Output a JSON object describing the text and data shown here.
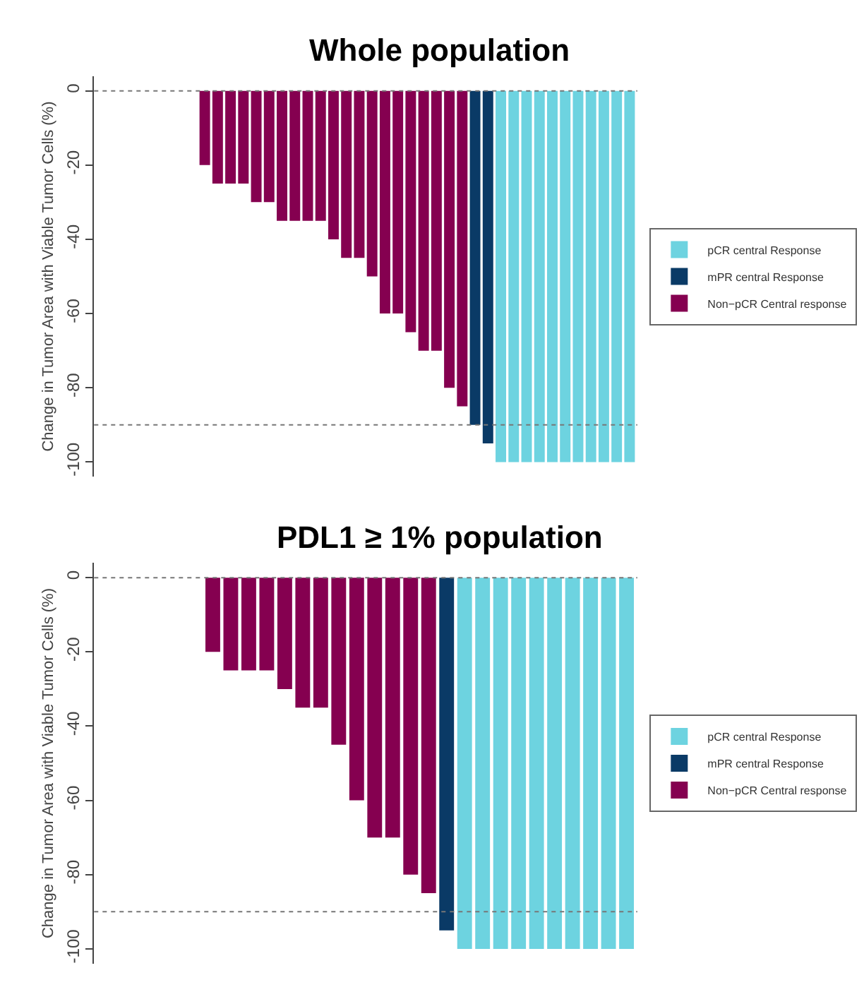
{
  "chart_data": [
    {
      "type": "bar",
      "title": "Whole population",
      "ylabel": "Change in Tumor Area with Viable Tumor Cells (%)",
      "categories": [
        null,
        null,
        null,
        null,
        null,
        null,
        null,
        null,
        null,
        null,
        null,
        null,
        null,
        null,
        null,
        null,
        null,
        null,
        null,
        null,
        null,
        null,
        null,
        null,
        null,
        null,
        null,
        null,
        null,
        null,
        null,
        null,
        null,
        null,
        null,
        null,
        null,
        null,
        null,
        null,
        null,
        null
      ],
      "series": [
        {
          "name": "pCR central Response",
          "color": "#6dd3e0",
          "values": [
            null,
            null,
            null,
            null,
            null,
            null,
            null,
            null,
            null,
            null,
            null,
            null,
            null,
            null,
            null,
            null,
            null,
            null,
            null,
            null,
            null,
            null,
            null,
            null,
            null,
            null,
            null,
            null,
            null,
            null,
            null,
            -100,
            -100,
            -100,
            -100,
            -100,
            -100,
            -100,
            -100,
            -100,
            -100,
            -100
          ]
        },
        {
          "name": "mPR central Response",
          "color": "#0a3a66",
          "values": [
            null,
            null,
            null,
            null,
            null,
            null,
            null,
            null,
            null,
            null,
            null,
            null,
            null,
            null,
            null,
            null,
            null,
            null,
            null,
            null,
            null,
            null,
            null,
            null,
            null,
            null,
            null,
            null,
            null,
            -90,
            -95,
            null,
            null,
            null,
            null,
            null,
            null,
            null,
            null,
            null,
            null,
            null
          ]
        },
        {
          "name": "Non−pCR Central response",
          "color": "#850050",
          "values": [
            0,
            0,
            0,
            0,
            0,
            0,
            0,
            0,
            -20,
            -25,
            -25,
            -25,
            -30,
            -30,
            -35,
            -35,
            -35,
            -35,
            -40,
            -45,
            -45,
            -50,
            -60,
            -60,
            -65,
            -70,
            -70,
            -80,
            -85,
            null,
            null,
            null,
            null,
            null,
            null,
            null,
            null,
            null,
            null,
            null,
            null,
            null
          ]
        }
      ],
      "ylim": [
        -104,
        4
      ],
      "yticks": [
        0,
        -20,
        -40,
        -60,
        -80,
        -100
      ],
      "ref_lines": [
        {
          "axis": "y",
          "value": 0,
          "color": "#777777",
          "line_style": "dotted"
        },
        {
          "axis": "y",
          "value": -90,
          "color": "#777777",
          "line_style": "dotted"
        }
      ],
      "legend": "right",
      "tick_labels": "y"
    },
    {
      "type": "bar",
      "title": "PDL1 ≥ 1% population",
      "ylabel": "Change in Tumor Area with Viable Tumor Cells (%)",
      "categories": [
        null,
        null,
        null,
        null,
        null,
        null,
        null,
        null,
        null,
        null,
        null,
        null,
        null,
        null,
        null,
        null,
        null,
        null,
        null,
        null,
        null,
        null,
        null,
        null,
        null,
        null,
        null,
        null,
        null,
        null
      ],
      "series": [
        {
          "name": "pCR central Response",
          "color": "#6dd3e0",
          "values": [
            null,
            null,
            null,
            null,
            null,
            null,
            null,
            null,
            null,
            null,
            null,
            null,
            null,
            null,
            null,
            null,
            null,
            null,
            null,
            null,
            -100,
            -100,
            -100,
            -100,
            -100,
            -100,
            -100,
            -100,
            -100,
            -100
          ]
        },
        {
          "name": "mPR central Response",
          "color": "#0a3a66",
          "values": [
            null,
            null,
            null,
            null,
            null,
            null,
            null,
            null,
            null,
            null,
            null,
            null,
            null,
            null,
            null,
            null,
            null,
            null,
            null,
            -95,
            null,
            null,
            null,
            null,
            null,
            null,
            null,
            null,
            null,
            null
          ]
        },
        {
          "name": "Non−pCR Central response",
          "color": "#850050",
          "values": [
            0,
            0,
            0,
            0,
            0,
            0,
            -20,
            -25,
            -25,
            -25,
            -30,
            -35,
            -35,
            -45,
            -60,
            -70,
            -70,
            -80,
            -85,
            null,
            null,
            null,
            null,
            null,
            null,
            null,
            null,
            null,
            null,
            null
          ]
        }
      ],
      "ylim": [
        -104,
        4
      ],
      "yticks": [
        0,
        -20,
        -40,
        -60,
        -80,
        -100
      ],
      "ref_lines": [
        {
          "axis": "y",
          "value": 0,
          "color": "#777777",
          "line_style": "dotted"
        },
        {
          "axis": "y",
          "value": -90,
          "color": "#777777",
          "line_style": "dotted"
        }
      ],
      "legend": "right",
      "tick_labels": "y"
    }
  ]
}
